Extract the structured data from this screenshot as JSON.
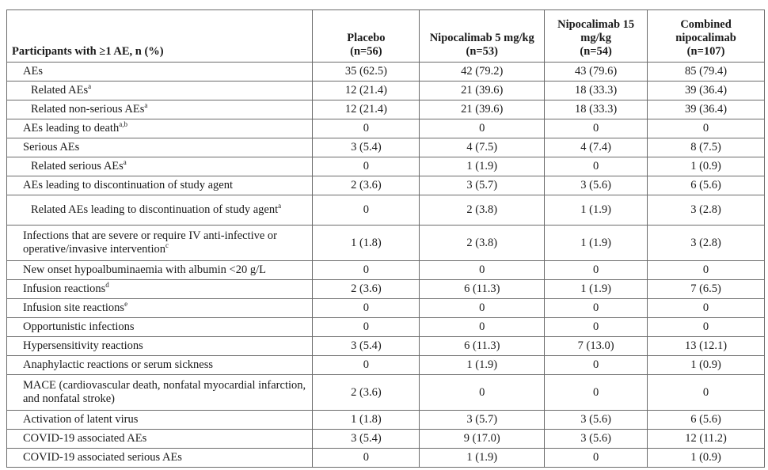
{
  "table": {
    "header": {
      "label": "Participants with ≥1 AE, n (%)",
      "columns": [
        {
          "name": "Placebo",
          "n": "(n=56)"
        },
        {
          "name": "Nipocalimab 5 mg/kg",
          "n": "(n=53)"
        },
        {
          "name": "Nipocalimab 15 mg/kg",
          "n": "(n=54)"
        },
        {
          "name": "Combined nipocalimab",
          "n": "(n=107)"
        }
      ]
    },
    "rows": [
      {
        "label": "AEs",
        "sup": "",
        "values": [
          "35 (62.5)",
          "42 (79.2)",
          "43 (79.6)",
          "85 (79.4)"
        ]
      },
      {
        "label": "Related AEs",
        "sup": "a",
        "values": [
          "12 (21.4)",
          "21 (39.6)",
          "18 (33.3)",
          "39 (36.4)"
        ]
      },
      {
        "label": "Related non-serious AEs",
        "sup": "a",
        "values": [
          "12 (21.4)",
          "21 (39.6)",
          "18 (33.3)",
          "39 (36.4)"
        ]
      },
      {
        "label": "AEs leading to death",
        "sup": "a,b",
        "values": [
          "0",
          "0",
          "0",
          "0"
        ]
      },
      {
        "label": "Serious AEs",
        "sup": "",
        "values": [
          "3 (5.4)",
          "4 (7.5)",
          "4 (7.4)",
          "8 (7.5)"
        ]
      },
      {
        "label": "Related serious AEs",
        "sup": "a",
        "values": [
          "0",
          "1 (1.9)",
          "0",
          "1 (0.9)"
        ]
      },
      {
        "label": "AEs leading to discontinuation of study agent",
        "sup": "",
        "values": [
          "2 (3.6)",
          "3 (5.7)",
          "3 (5.6)",
          "6 (5.6)"
        ]
      },
      {
        "label": "Related AEs leading to discontinuation of study agent",
        "sup": "a",
        "values": [
          "0",
          "2 (3.8)",
          "1 (1.9)",
          "3 (2.8)"
        ]
      },
      {
        "label": "Infections that are severe or require IV anti-infective or operative/invasive intervention",
        "sup": "c",
        "values": [
          "1 (1.8)",
          "2 (3.8)",
          "1 (1.9)",
          "3 (2.8)"
        ]
      },
      {
        "label": "New onset hypoalbuminaemia with albumin <20 g/L",
        "sup": "",
        "values": [
          "0",
          "0",
          "0",
          "0"
        ]
      },
      {
        "label": "Infusion reactions",
        "sup": "d",
        "values": [
          "2 (3.6)",
          "6 (11.3)",
          "1 (1.9)",
          "7 (6.5)"
        ]
      },
      {
        "label": "Infusion site reactions",
        "sup": "e",
        "values": [
          "0",
          "0",
          "0",
          "0"
        ]
      },
      {
        "label": "Opportunistic infections",
        "sup": "",
        "values": [
          "0",
          "0",
          "0",
          "0"
        ]
      },
      {
        "label": "Hypersensitivity reactions",
        "sup": "",
        "values": [
          "3 (5.4)",
          "6 (11.3)",
          "7 (13.0)",
          "13 (12.1)"
        ]
      },
      {
        "label": "Anaphylactic reactions or serum sickness",
        "sup": "",
        "values": [
          "0",
          "1 (1.9)",
          "0",
          "1 (0.9)"
        ]
      },
      {
        "label": "MACE (cardiovascular death, nonfatal myocardial infarction, and nonfatal stroke)",
        "sup": "",
        "values": [
          "2 (3.6)",
          "0",
          "0",
          "0"
        ]
      },
      {
        "label": "Activation of latent virus",
        "sup": "",
        "values": [
          "1 (1.8)",
          "3 (5.7)",
          "3 (5.6)",
          "6 (5.6)"
        ]
      },
      {
        "label": "COVID-19 associated AEs",
        "sup": "",
        "values": [
          "3 (5.4)",
          "9 (17.0)",
          "3 (5.6)",
          "12 (11.2)"
        ]
      },
      {
        "label": "COVID-19 associated serious AEs",
        "sup": "",
        "values": [
          "0",
          "1 (1.9)",
          "0",
          "1 (0.9)"
        ]
      }
    ]
  }
}
